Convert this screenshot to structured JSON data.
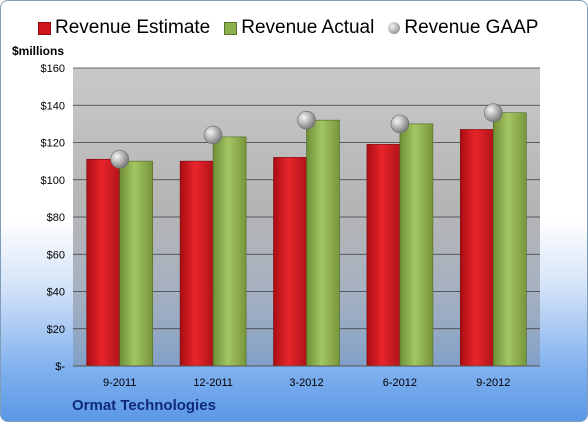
{
  "chart_data": {
    "type": "bar",
    "title": "",
    "ylabel": "$millions",
    "xlabel": "",
    "categories": [
      "9-2011",
      "12-2011",
      "3-2012",
      "6-2012",
      "9-2012"
    ],
    "series": [
      {
        "name": "Revenue Estimate",
        "kind": "bar",
        "color": "#d0151c",
        "values": [
          111,
          110,
          112,
          119,
          127
        ]
      },
      {
        "name": "Revenue Actual",
        "kind": "bar",
        "color": "#8cb04a",
        "values": [
          110,
          123,
          132,
          130,
          136
        ]
      },
      {
        "name": "Revenue GAAP",
        "kind": "marker",
        "color": "#a8a8a8",
        "values": [
          111,
          124,
          132,
          130,
          136
        ]
      }
    ],
    "ylim": [
      0,
      160
    ],
    "ytick_values": [
      0,
      20,
      40,
      60,
      80,
      100,
      120,
      140,
      160
    ],
    "ytick_labels": [
      "$-",
      "$20",
      "$40",
      "$60",
      "$80",
      "$100",
      "$120",
      "$140",
      "$160"
    ],
    "grid": true,
    "legend_position": "top"
  },
  "legend": {
    "estimate": "Revenue Estimate",
    "actual": "Revenue Actual",
    "gaap": "Revenue GAAP"
  },
  "unit_label": "$millions",
  "footer": {
    "company": "Ormat Technologies"
  }
}
